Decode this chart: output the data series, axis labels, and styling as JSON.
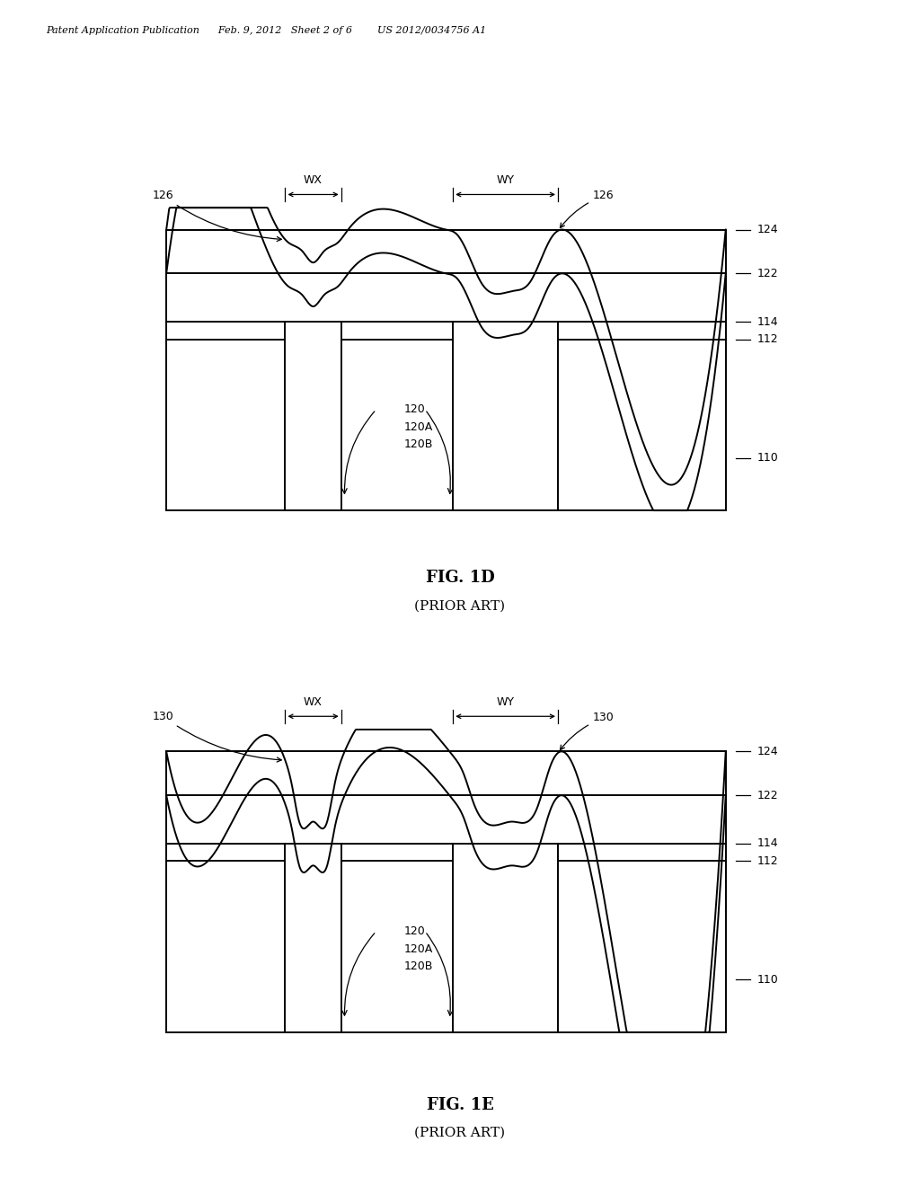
{
  "bg_color": "#ffffff",
  "lc": "#000000",
  "lw": 1.4,
  "header": "Patent Application Publication      Feb. 9, 2012   Sheet 2 of 6        US 2012/0034756 A1",
  "fig1d_title": "FIG. 1D",
  "fig1d_sub": "(PRIOR ART)",
  "fig1e_title": "FIG. 1E",
  "fig1e_sub": "(PRIOR ART)",
  "fs_label": 9,
  "fs_title": 13,
  "fs_sub": 11,
  "fs_header": 8
}
